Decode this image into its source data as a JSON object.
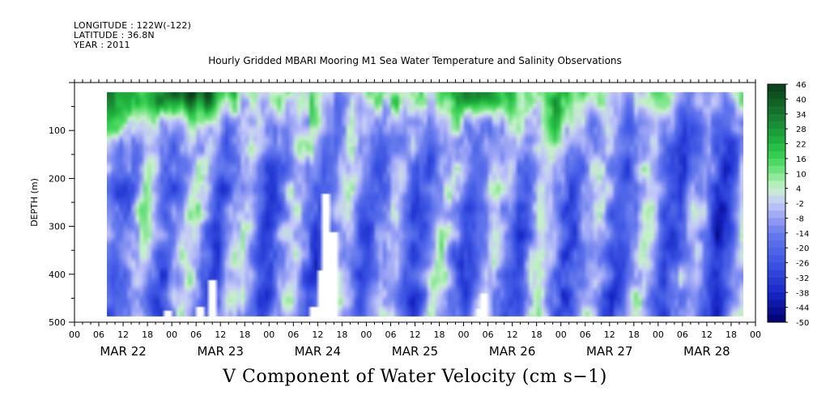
{
  "header": {
    "longitude": "LONGITUDE : 122W(-122)",
    "latitude": "LATITUDE : 36.8N",
    "year": "YEAR : 2011"
  },
  "chart_data": {
    "type": "heatmap",
    "title": "Hourly Gridded MBARI Mooring M1 Sea Water Temperature and Salinity Observations",
    "xlabel": "V Component of Water Velocity (cm s−1)",
    "ylabel": "DEPTH (m)",
    "ylim": [
      500,
      0
    ],
    "y_ticks": [
      100,
      200,
      300,
      400,
      500
    ],
    "x_hour_ticks": [
      "00",
      "06",
      "12",
      "18",
      "00",
      "06",
      "12",
      "18",
      "00",
      "06",
      "12",
      "18",
      "00",
      "06",
      "12",
      "18",
      "00",
      "06",
      "12",
      "18",
      "00",
      "06",
      "12",
      "18",
      "00",
      "06",
      "12",
      "18",
      "00"
    ],
    "x_day_labels": [
      "MAR 22",
      "MAR 23",
      "MAR 24",
      "MAR 25",
      "MAR 26",
      "MAR 27",
      "MAR 28"
    ],
    "colorbar_ticks": [
      46,
      40,
      34,
      28,
      22,
      16,
      10,
      4,
      -2,
      -8,
      -14,
      -20,
      -26,
      -32,
      -38,
      -44,
      -50
    ],
    "colorbar_range": [
      -50,
      46
    ],
    "data_depth_range_m": [
      20,
      488
    ],
    "data_time_range_hours": [
      8,
      165
    ],
    "colors": {
      "strong_positive": "#0a3d17",
      "positive": "#2fbf45",
      "weak_positive": "#7ee68a",
      "near_zero": "#c6f2c8",
      "weak_negative": "#a3aaf0",
      "negative": "#5d70e6",
      "strong_negative": "#000070"
    }
  }
}
